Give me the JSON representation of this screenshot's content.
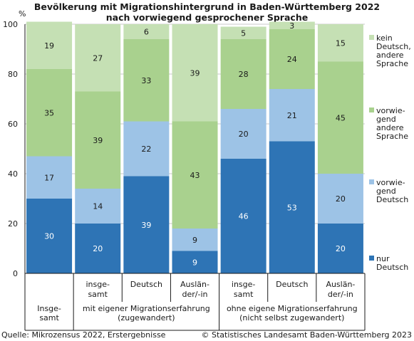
{
  "title_line1": "Bevölkerung mit Migrationshintergrund in Baden-Württemberg 2022",
  "title_line2": "nach vorwiegend gesprochener Sprache",
  "footer": {
    "source": "Quelle: Mikrozensus 2022, Erstergebnisse",
    "copyright": "© Statistisches Landesamt Baden-Württemberg 2023"
  },
  "chart_data": {
    "type": "bar",
    "stacked": true,
    "ylabel": "%",
    "ylim": [
      0,
      100
    ],
    "yticks": [
      0,
      20,
      40,
      60,
      80,
      100
    ],
    "grid": "horizontal",
    "legend_position": "right",
    "categories": [
      "Insgesamt",
      "insgesamt",
      "Deutsch",
      "Ausländer/-in",
      "insgesamt",
      "Deutsch",
      "Ausländer/-in"
    ],
    "category_labels": [
      [],
      [
        "insge-",
        "samt"
      ],
      [
        "Deutsch"
      ],
      [
        "Auslän-",
        "der/-in"
      ],
      [
        "insge-",
        "samt"
      ],
      [
        "Deutsch"
      ],
      [
        "Auslän-",
        "der/-in"
      ]
    ],
    "groups": [
      {
        "label_lines": [
          "Insge-",
          "samt"
        ],
        "start": 0,
        "end": 0
      },
      {
        "label_lines": [
          "mit eigener Migrationserfahrung",
          "(zugewandert)"
        ],
        "start": 1,
        "end": 3
      },
      {
        "label_lines": [
          "ohne eigene Migrationserfahrung",
          "(nicht selbst zugewandert)"
        ],
        "start": 4,
        "end": 6
      }
    ],
    "series": [
      {
        "name": "nur Deutsch",
        "legend_lines": [
          "nur",
          "Deutsch"
        ],
        "color": "#2e74b5",
        "label_color": "#ffffff",
        "values": [
          30,
          20,
          39,
          9,
          46,
          53,
          20
        ]
      },
      {
        "name": "vorwiegend Deutsch",
        "legend_lines": [
          "vorwie-",
          "gend",
          "Deutsch"
        ],
        "color": "#9dc3e6",
        "label_color": "#1a1a1a",
        "values": [
          17,
          14,
          22,
          9,
          20,
          21,
          20
        ]
      },
      {
        "name": "vorwiegend andere Sprache",
        "legend_lines": [
          "vorwie-",
          "gend",
          "andere",
          "Sprache"
        ],
        "color": "#a9d18e",
        "label_color": "#1a1a1a",
        "values": [
          35,
          39,
          33,
          43,
          28,
          24,
          45
        ]
      },
      {
        "name": "kein Deutsch, andere Sprache",
        "legend_lines": [
          "kein",
          "Deutsch,",
          "andere",
          "Sprache"
        ],
        "color": "#c5e0b4",
        "label_color": "#1a1a1a",
        "values": [
          19,
          27,
          6,
          39,
          5,
          3,
          15
        ]
      }
    ]
  }
}
